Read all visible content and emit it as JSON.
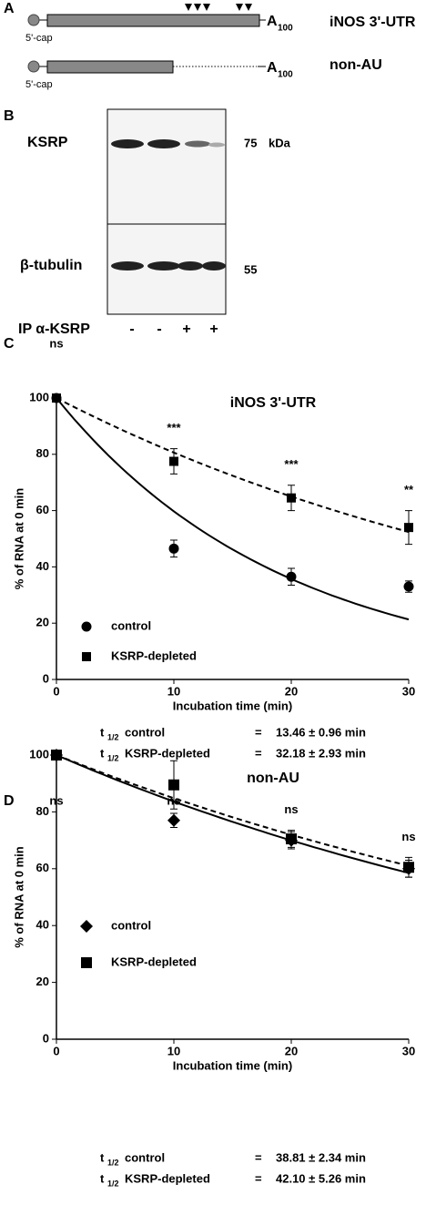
{
  "panel_a": {
    "label": "A",
    "constructs": [
      {
        "cap": "5'-cap",
        "tail": "A",
        "tail_sub": "100",
        "name": "iNOS 3'-UTR"
      },
      {
        "cap": "5'-cap",
        "tail": "A",
        "tail_sub": "100",
        "name": "non-AU"
      }
    ]
  },
  "panel_b": {
    "label": "B",
    "rows": [
      {
        "protein": "KSRP",
        "size": "75",
        "unit": "kDa"
      },
      {
        "protein": "β-tubulin",
        "size": "55"
      }
    ],
    "ip_label": "IP α-KSRP",
    "lanes": [
      "-",
      "-",
      "+",
      "+"
    ]
  },
  "chart_data": [
    {
      "type": "scatter",
      "panel_label": "C",
      "title": "iNOS 3'-UTR",
      "x_label": "Incubation time (min)",
      "y_label": "% of RNA at 0 min",
      "xlim": [
        0,
        30
      ],
      "xticks": [
        0,
        10,
        20,
        30
      ],
      "ylim": [
        0,
        100
      ],
      "yticks": [
        0,
        20,
        40,
        60,
        80,
        100
      ],
      "series": [
        {
          "name": "control",
          "marker": "circle",
          "color": "#000000",
          "line": "solid",
          "x": [
            0,
            10,
            20,
            30
          ],
          "values": [
            100,
            46.5,
            36.5,
            33
          ],
          "errors": [
            0,
            3,
            3,
            2
          ]
        },
        {
          "name": "KSRP-depleted",
          "marker": "square",
          "color": "#000000",
          "line": "dashed",
          "x": [
            0,
            10,
            20,
            30
          ],
          "values": [
            100,
            77.5,
            64.5,
            54
          ],
          "errors": [
            0,
            4.5,
            4.5,
            6
          ]
        }
      ],
      "annotations": [
        {
          "x": 0,
          "text": "ns"
        },
        {
          "x": 10,
          "text": "***"
        },
        {
          "x": 20,
          "text": "***"
        },
        {
          "x": 30,
          "text": "**"
        }
      ],
      "half_lives": [
        {
          "t": "t",
          "sub": "1/2",
          "name": "control",
          "eq": "=",
          "value": 13.46,
          "label": "13.46 ± 0.96 min"
        },
        {
          "t": "t",
          "sub": "1/2",
          "name": "KSRP-depleted",
          "eq": "=",
          "value": 32.18,
          "label": "32.18 ± 2.93 min"
        }
      ]
    },
    {
      "type": "scatter",
      "panel_label": "D",
      "title": "non-AU",
      "x_label": "Incubation time (min)",
      "y_label": "% of RNA at 0 min",
      "xlim": [
        0,
        30
      ],
      "xticks": [
        0,
        10,
        20,
        30
      ],
      "ylim": [
        0,
        100
      ],
      "yticks": [
        0,
        20,
        40,
        60,
        80,
        100
      ],
      "series": [
        {
          "name": "control",
          "marker": "diamond",
          "color": "#000000",
          "line": "solid",
          "x": [
            0,
            10,
            20,
            30
          ],
          "values": [
            100,
            77,
            70,
            60
          ],
          "errors": [
            0,
            2.5,
            3,
            3
          ]
        },
        {
          "name": "KSRP-depleted",
          "marker": "square-large",
          "color": "#000000",
          "line": "dashed",
          "x": [
            0,
            10,
            20,
            30
          ],
          "values": [
            100,
            89.5,
            70.5,
            60.5
          ],
          "errors": [
            0,
            8.5,
            3,
            3.5
          ]
        }
      ],
      "annotations": [
        {
          "x": 0,
          "text": "ns"
        },
        {
          "x": 10,
          "text": "ns"
        },
        {
          "x": 20,
          "text": "ns"
        },
        {
          "x": 30,
          "text": "ns"
        }
      ],
      "half_lives": [
        {
          "t": "t",
          "sub": "1/2",
          "name": "control",
          "eq": "=",
          "value": 38.81,
          "label": "38.81 ± 2.34 min"
        },
        {
          "t": "t",
          "sub": "1/2",
          "name": "KSRP-depleted",
          "eq": "=",
          "value": 42.1,
          "label": "42.10 ± 5.26 min"
        }
      ]
    }
  ]
}
